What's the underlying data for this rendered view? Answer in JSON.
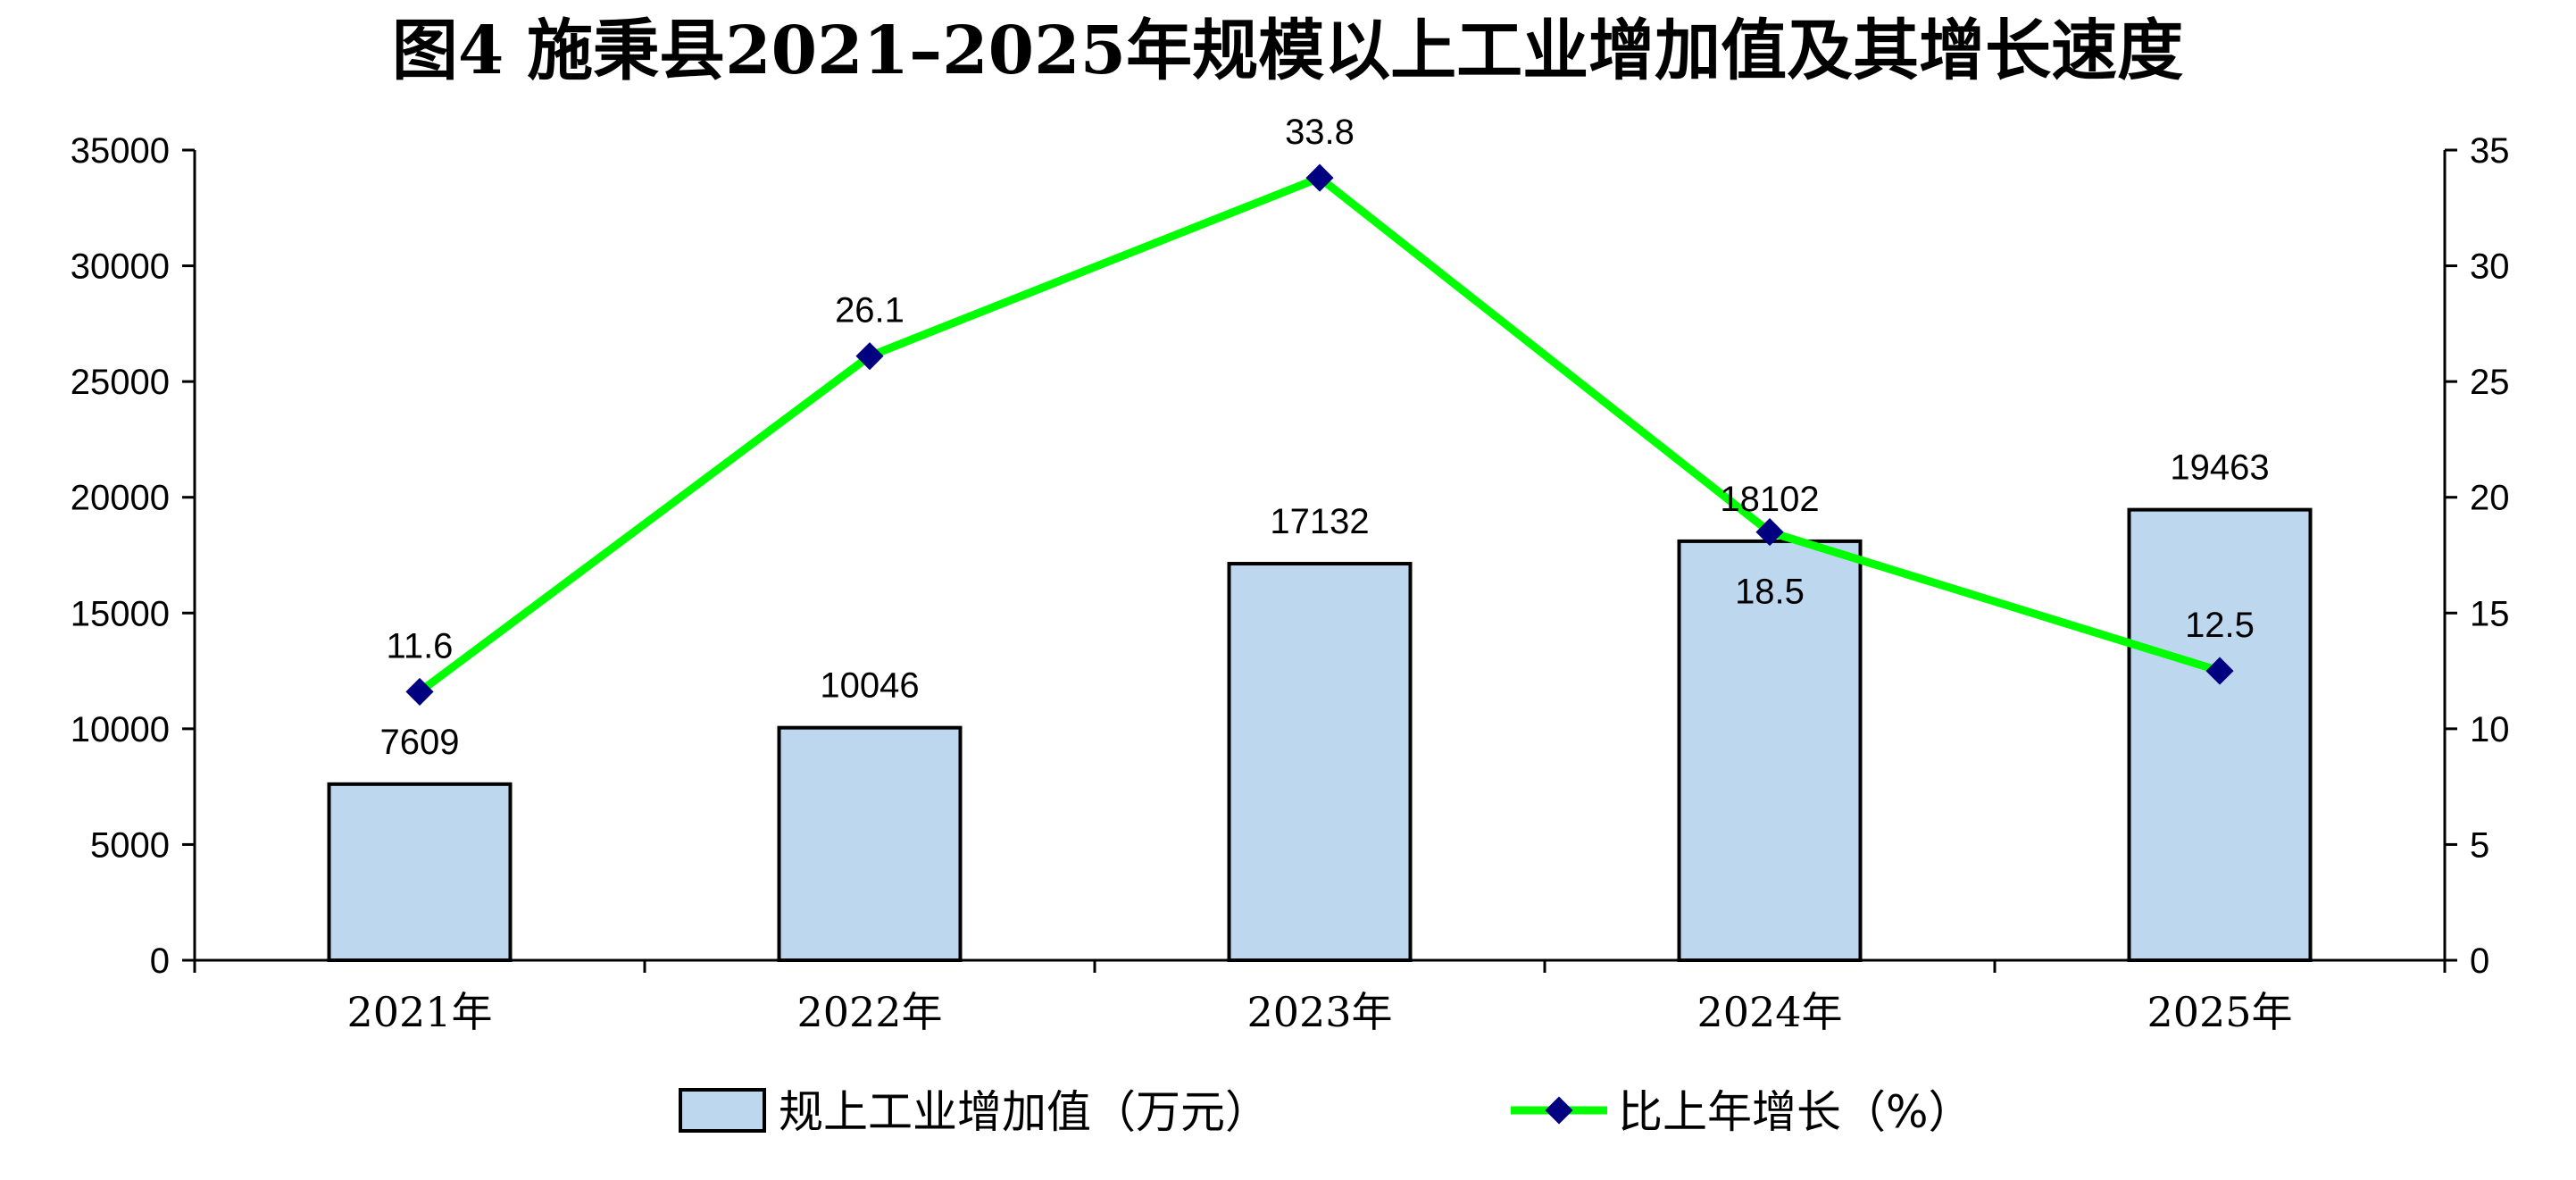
{
  "chart_data": {
    "type": "bar+line",
    "title": "图4  施秉县2021–2025年规模以上工业增加值及其增长速度",
    "categories": [
      "2021年",
      "2022年",
      "2023年",
      "2024年",
      "2025年"
    ],
    "series": [
      {
        "name": "规上工业增加值（万元）",
        "type": "bar",
        "axis": "left",
        "values": [
          7609,
          10046,
          17132,
          18102,
          19463
        ],
        "labels": [
          "7609",
          "10046",
          "17132",
          "18102",
          "19463"
        ],
        "color": "#bdd7ee"
      },
      {
        "name": "比上年增长（%）",
        "type": "line",
        "axis": "right",
        "values": [
          11.6,
          26.1,
          33.8,
          18.5,
          12.5
        ],
        "labels": [
          "11.6",
          "26.1",
          "33.8",
          "18.5",
          "12.5"
        ],
        "color": "#00ff00",
        "marker_color": "#000080"
      }
    ],
    "y_left": {
      "min": 0,
      "max": 35000,
      "step": 5000,
      "ticks": [
        "0",
        "5000",
        "10000",
        "15000",
        "20000",
        "25000",
        "30000",
        "35000"
      ]
    },
    "y_right": {
      "min": 0,
      "max": 35,
      "step": 5,
      "ticks": [
        "0",
        "5",
        "10",
        "15",
        "20",
        "25",
        "30",
        "35"
      ]
    },
    "grid": false,
    "legend": "bottom"
  }
}
